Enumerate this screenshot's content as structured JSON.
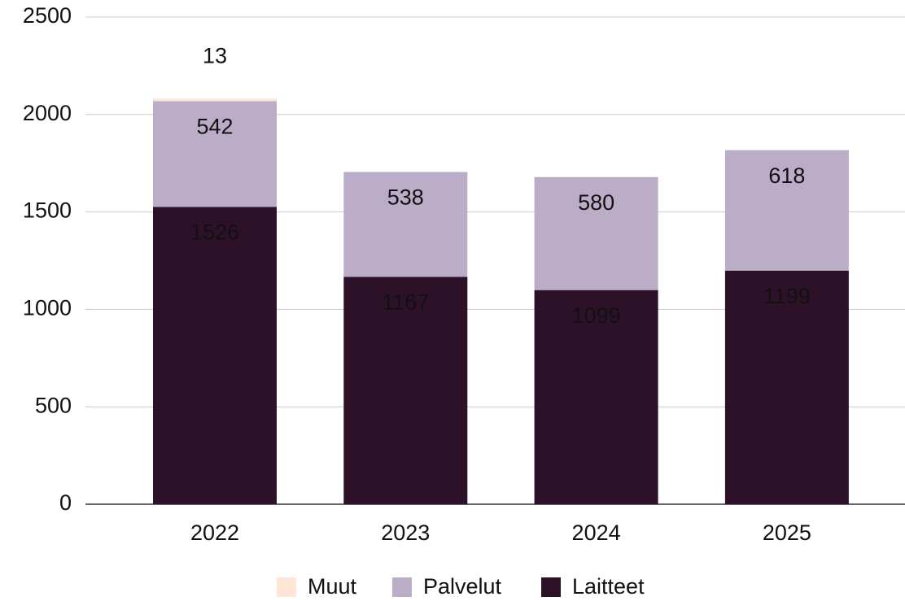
{
  "chart_data": {
    "type": "stacked_bar",
    "categories": [
      "2022",
      "2023",
      "2024",
      "2025"
    ],
    "series": [
      {
        "name": "Laitteet",
        "color": "#2d1128",
        "values": [
          1526,
          1167,
          1099,
          1199
        ]
      },
      {
        "name": "Palvelut",
        "color": "#bbadc8",
        "values": [
          542,
          538,
          580,
          618
        ]
      },
      {
        "name": "Muut",
        "color": "#fde5d8",
        "values": [
          13,
          null,
          null,
          null
        ]
      }
    ],
    "ylim": [
      0,
      2500
    ],
    "yticks": [
      0,
      500,
      1000,
      1500,
      2000,
      2500
    ],
    "grid": true,
    "legend": "bottom"
  }
}
